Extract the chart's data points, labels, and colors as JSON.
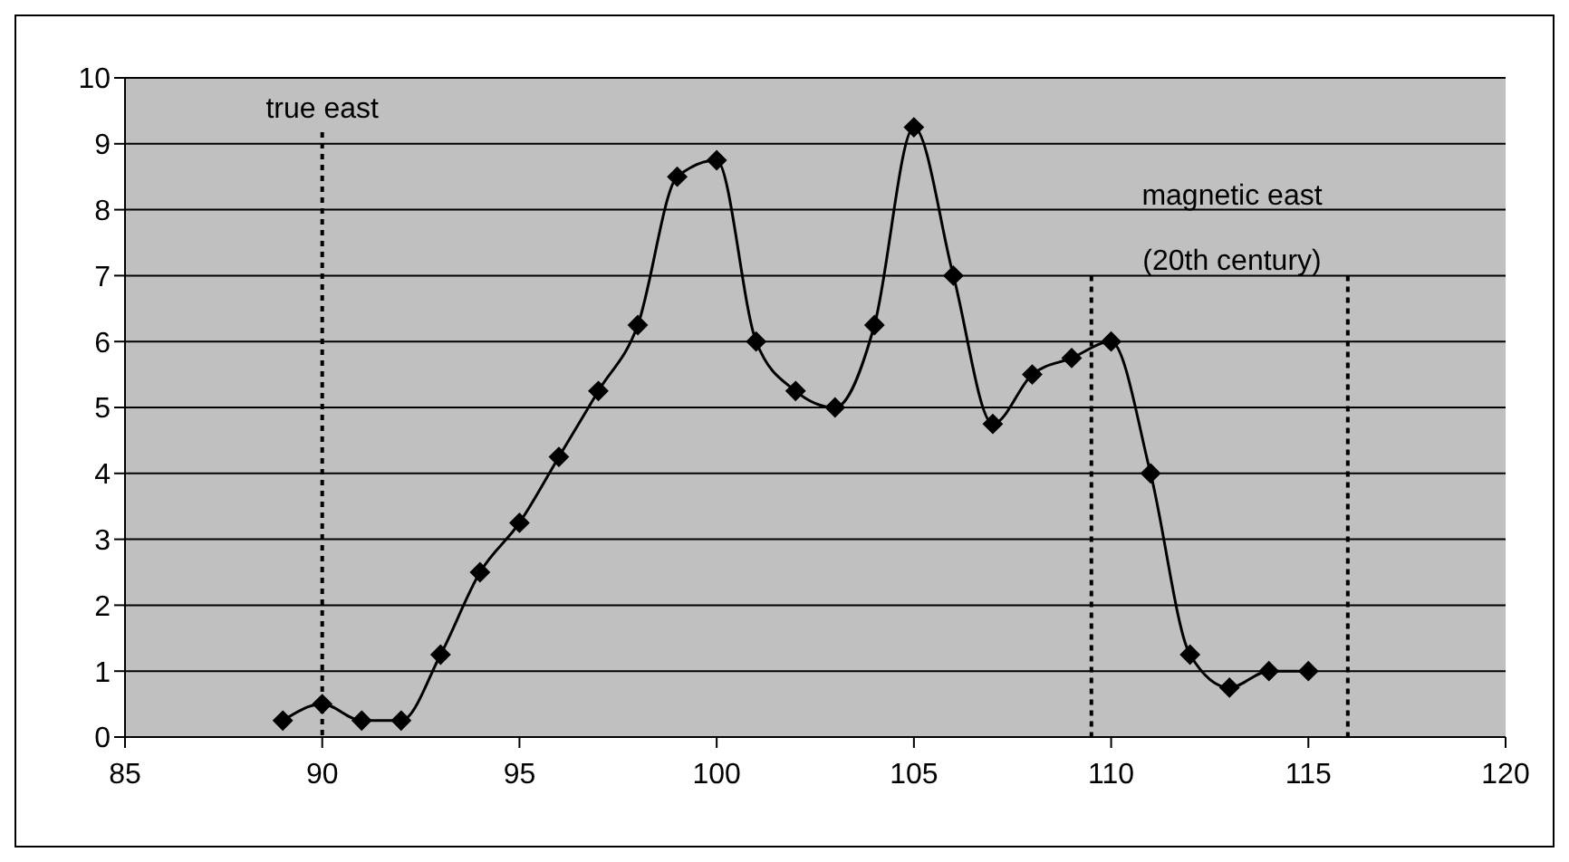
{
  "chart_data": {
    "type": "line",
    "x": [
      89,
      90,
      91,
      92,
      93,
      94,
      95,
      96,
      97,
      98,
      99,
      100,
      101,
      102,
      103,
      104,
      105,
      106,
      107,
      108,
      109,
      110,
      111,
      112,
      113,
      114,
      115
    ],
    "series": [
      {
        "color": "#000000",
        "values": [
          0.25,
          0.5,
          0.25,
          0.25,
          1.25,
          2.5,
          3.25,
          4.25,
          5.25,
          6.25,
          8.5,
          8.75,
          6,
          5.25,
          5,
          6.25,
          9.25,
          7,
          4.75,
          5.5,
          5.75,
          6,
          4,
          1.25,
          0.75,
          1,
          1
        ]
      }
    ],
    "xlim": [
      85,
      120
    ],
    "xticks": [
      85,
      90,
      95,
      100,
      105,
      110,
      115,
      120
    ],
    "ylim": [
      0,
      10
    ],
    "yticks": [
      0,
      1,
      2,
      3,
      4,
      5,
      6,
      7,
      8,
      9,
      10
    ],
    "grid": "y",
    "marker": "diamond",
    "line_style": "solid",
    "ref_lines": [
      {
        "axis": "x",
        "value": 90,
        "label": "true east",
        "color": "#000000",
        "line_style": "dotted"
      },
      {
        "axis": "x",
        "value": 109.5,
        "color": "#000000",
        "line_style": "dotted"
      },
      {
        "axis": "x",
        "value": 116,
        "color": "#000000",
        "line_style": "dotted"
      }
    ],
    "legend": false,
    "annotations": [
      "magnetic east (20th century)"
    ]
  }
}
